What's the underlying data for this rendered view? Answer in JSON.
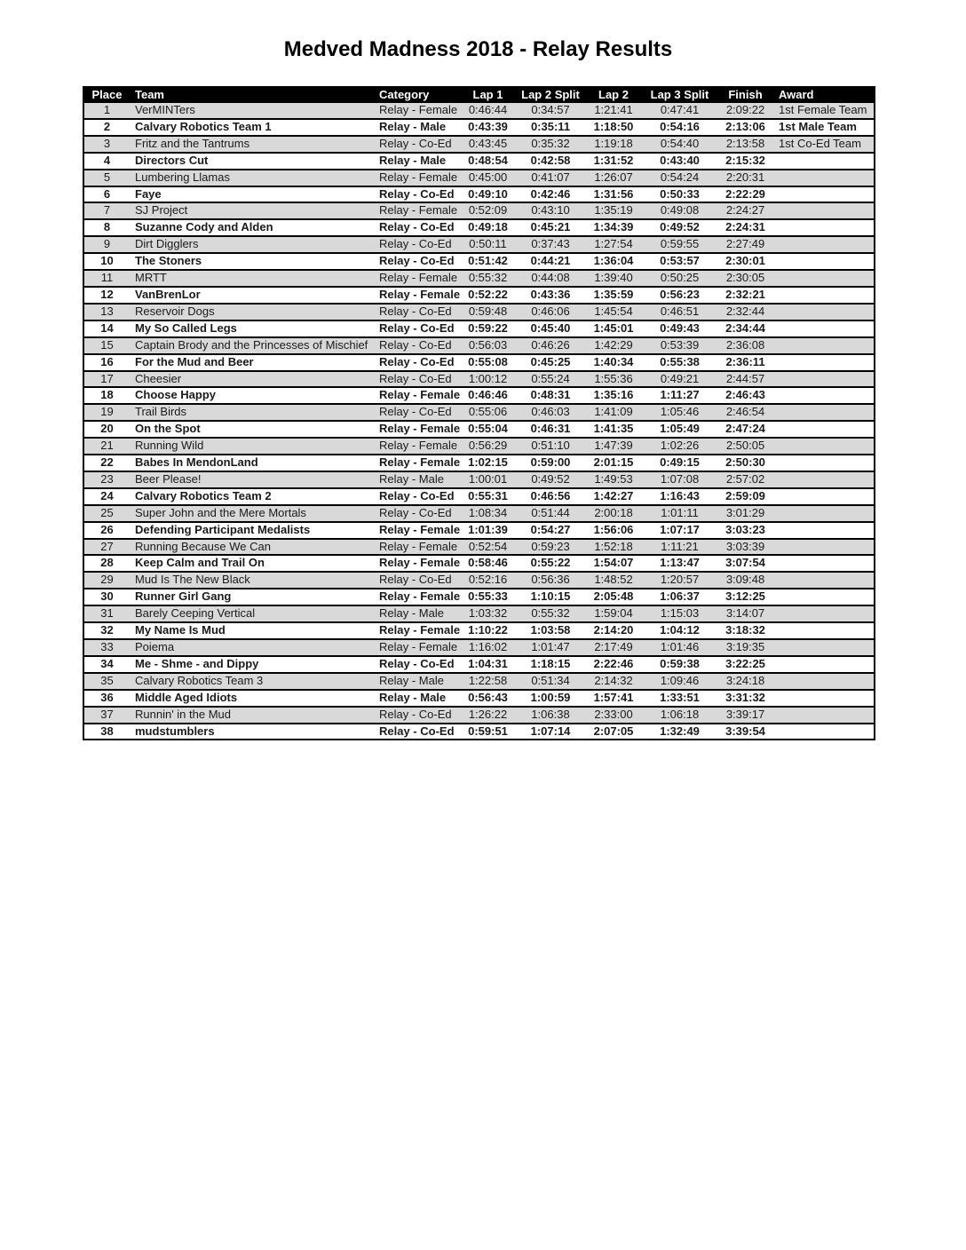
{
  "title": "Medved Madness 2018 - Relay Results",
  "colors": {
    "header_bg": "#000000",
    "header_text": "#ffffff",
    "stripe_bg": "#d9d9d9",
    "row_bg": "#ffffff",
    "border": "#000000"
  },
  "table": {
    "headers": [
      "Place",
      "Team",
      "Category",
      "Lap 1",
      "Lap 2 Split",
      "Lap 2",
      "Lap 3 Split",
      "Finish",
      "Award"
    ],
    "rows": [
      {
        "place": "1",
        "team": "VerMINTers",
        "category": "Relay - Female",
        "lap1": "0:46:44",
        "lap2_split": "0:34:57",
        "lap2": "1:21:41",
        "lap3_split": "0:47:41",
        "finish": "2:09:22",
        "award": "1st Female Team"
      },
      {
        "place": "2",
        "team": "Calvary Robotics Team 1",
        "category": "Relay - Male",
        "lap1": "0:43:39",
        "lap2_split": "0:35:11",
        "lap2": "1:18:50",
        "lap3_split": "0:54:16",
        "finish": "2:13:06",
        "award": "1st Male Team"
      },
      {
        "place": "3",
        "team": "Fritz and the Tantrums",
        "category": "Relay - Co-Ed",
        "lap1": "0:43:45",
        "lap2_split": "0:35:32",
        "lap2": "1:19:18",
        "lap3_split": "0:54:40",
        "finish": "2:13:58",
        "award": "1st Co-Ed Team"
      },
      {
        "place": "4",
        "team": "Directors Cut",
        "category": "Relay - Male",
        "lap1": "0:48:54",
        "lap2_split": "0:42:58",
        "lap2": "1:31:52",
        "lap3_split": "0:43:40",
        "finish": "2:15:32",
        "award": ""
      },
      {
        "place": "5",
        "team": "Lumbering Llamas",
        "category": "Relay - Female",
        "lap1": "0:45:00",
        "lap2_split": "0:41:07",
        "lap2": "1:26:07",
        "lap3_split": "0:54:24",
        "finish": "2:20:31",
        "award": ""
      },
      {
        "place": "6",
        "team": "Faye",
        "category": "Relay - Co-Ed",
        "lap1": "0:49:10",
        "lap2_split": "0:42:46",
        "lap2": "1:31:56",
        "lap3_split": "0:50:33",
        "finish": "2:22:29",
        "award": ""
      },
      {
        "place": "7",
        "team": "SJ Project",
        "category": "Relay - Female",
        "lap1": "0:52:09",
        "lap2_split": "0:43:10",
        "lap2": "1:35:19",
        "lap3_split": "0:49:08",
        "finish": "2:24:27",
        "award": ""
      },
      {
        "place": "8",
        "team": "Suzanne Cody and Alden",
        "category": "Relay - Co-Ed",
        "lap1": "0:49:18",
        "lap2_split": "0:45:21",
        "lap2": "1:34:39",
        "lap3_split": "0:49:52",
        "finish": "2:24:31",
        "award": ""
      },
      {
        "place": "9",
        "team": "Dirt Digglers",
        "category": "Relay - Co-Ed",
        "lap1": "0:50:11",
        "lap2_split": "0:37:43",
        "lap2": "1:27:54",
        "lap3_split": "0:59:55",
        "finish": "2:27:49",
        "award": ""
      },
      {
        "place": "10",
        "team": "The Stoners",
        "category": "Relay - Co-Ed",
        "lap1": "0:51:42",
        "lap2_split": "0:44:21",
        "lap2": "1:36:04",
        "lap3_split": "0:53:57",
        "finish": "2:30:01",
        "award": ""
      },
      {
        "place": "11",
        "team": "MRTT",
        "category": "Relay - Female",
        "lap1": "0:55:32",
        "lap2_split": "0:44:08",
        "lap2": "1:39:40",
        "lap3_split": "0:50:25",
        "finish": "2:30:05",
        "award": ""
      },
      {
        "place": "12",
        "team": "VanBrenLor",
        "category": "Relay - Female",
        "lap1": "0:52:22",
        "lap2_split": "0:43:36",
        "lap2": "1:35:59",
        "lap3_split": "0:56:23",
        "finish": "2:32:21",
        "award": ""
      },
      {
        "place": "13",
        "team": "Reservoir Dogs",
        "category": "Relay - Co-Ed",
        "lap1": "0:59:48",
        "lap2_split": "0:46:06",
        "lap2": "1:45:54",
        "lap3_split": "0:46:51",
        "finish": "2:32:44",
        "award": ""
      },
      {
        "place": "14",
        "team": "My So Called Legs",
        "category": "Relay - Co-Ed",
        "lap1": "0:59:22",
        "lap2_split": "0:45:40",
        "lap2": "1:45:01",
        "lap3_split": "0:49:43",
        "finish": "2:34:44",
        "award": ""
      },
      {
        "place": "15",
        "team": "Captain Brody and the Princesses of Mischief",
        "category": "Relay - Co-Ed",
        "lap1": "0:56:03",
        "lap2_split": "0:46:26",
        "lap2": "1:42:29",
        "lap3_split": "0:53:39",
        "finish": "2:36:08",
        "award": ""
      },
      {
        "place": "16",
        "team": "For the Mud and Beer",
        "category": "Relay - Co-Ed",
        "lap1": "0:55:08",
        "lap2_split": "0:45:25",
        "lap2": "1:40:34",
        "lap3_split": "0:55:38",
        "finish": "2:36:11",
        "award": ""
      },
      {
        "place": "17",
        "team": "Cheesier",
        "category": "Relay - Co-Ed",
        "lap1": "1:00:12",
        "lap2_split": "0:55:24",
        "lap2": "1:55:36",
        "lap3_split": "0:49:21",
        "finish": "2:44:57",
        "award": ""
      },
      {
        "place": "18",
        "team": "Choose Happy",
        "category": "Relay - Female",
        "lap1": "0:46:46",
        "lap2_split": "0:48:31",
        "lap2": "1:35:16",
        "lap3_split": "1:11:27",
        "finish": "2:46:43",
        "award": ""
      },
      {
        "place": "19",
        "team": "Trail Birds",
        "category": "Relay - Co-Ed",
        "lap1": "0:55:06",
        "lap2_split": "0:46:03",
        "lap2": "1:41:09",
        "lap3_split": "1:05:46",
        "finish": "2:46:54",
        "award": ""
      },
      {
        "place": "20",
        "team": "On the Spot",
        "category": "Relay - Female",
        "lap1": "0:55:04",
        "lap2_split": "0:46:31",
        "lap2": "1:41:35",
        "lap3_split": "1:05:49",
        "finish": "2:47:24",
        "award": ""
      },
      {
        "place": "21",
        "team": "Running Wild",
        "category": "Relay - Female",
        "lap1": "0:56:29",
        "lap2_split": "0:51:10",
        "lap2": "1:47:39",
        "lap3_split": "1:02:26",
        "finish": "2:50:05",
        "award": ""
      },
      {
        "place": "22",
        "team": "Babes In MendonLand",
        "category": "Relay - Female",
        "lap1": "1:02:15",
        "lap2_split": "0:59:00",
        "lap2": "2:01:15",
        "lap3_split": "0:49:15",
        "finish": "2:50:30",
        "award": ""
      },
      {
        "place": "23",
        "team": "Beer Please!",
        "category": "Relay - Male",
        "lap1": "1:00:01",
        "lap2_split": "0:49:52",
        "lap2": "1:49:53",
        "lap3_split": "1:07:08",
        "finish": "2:57:02",
        "award": ""
      },
      {
        "place": "24",
        "team": "Calvary Robotics Team 2",
        "category": "Relay - Co-Ed",
        "lap1": "0:55:31",
        "lap2_split": "0:46:56",
        "lap2": "1:42:27",
        "lap3_split": "1:16:43",
        "finish": "2:59:09",
        "award": ""
      },
      {
        "place": "25",
        "team": "Super John and the Mere Mortals",
        "category": "Relay - Co-Ed",
        "lap1": "1:08:34",
        "lap2_split": "0:51:44",
        "lap2": "2:00:18",
        "lap3_split": "1:01:11",
        "finish": "3:01:29",
        "award": ""
      },
      {
        "place": "26",
        "team": "Defending Participant Medalists",
        "category": "Relay - Female",
        "lap1": "1:01:39",
        "lap2_split": "0:54:27",
        "lap2": "1:56:06",
        "lap3_split": "1:07:17",
        "finish": "3:03:23",
        "award": ""
      },
      {
        "place": "27",
        "team": "Running Because We Can",
        "category": "Relay - Female",
        "lap1": "0:52:54",
        "lap2_split": "0:59:23",
        "lap2": "1:52:18",
        "lap3_split": "1:11:21",
        "finish": "3:03:39",
        "award": ""
      },
      {
        "place": "28",
        "team": "Keep Calm and Trail On",
        "category": "Relay - Female",
        "lap1": "0:58:46",
        "lap2_split": "0:55:22",
        "lap2": "1:54:07",
        "lap3_split": "1:13:47",
        "finish": "3:07:54",
        "award": ""
      },
      {
        "place": "29",
        "team": "Mud Is The New Black",
        "category": "Relay - Co-Ed",
        "lap1": "0:52:16",
        "lap2_split": "0:56:36",
        "lap2": "1:48:52",
        "lap3_split": "1:20:57",
        "finish": "3:09:48",
        "award": ""
      },
      {
        "place": "30",
        "team": "Runner Girl Gang",
        "category": "Relay - Female",
        "lap1": "0:55:33",
        "lap2_split": "1:10:15",
        "lap2": "2:05:48",
        "lap3_split": "1:06:37",
        "finish": "3:12:25",
        "award": ""
      },
      {
        "place": "31",
        "team": "Barely Ceeping Vertical",
        "category": "Relay - Male",
        "lap1": "1:03:32",
        "lap2_split": "0:55:32",
        "lap2": "1:59:04",
        "lap3_split": "1:15:03",
        "finish": "3:14:07",
        "award": ""
      },
      {
        "place": "32",
        "team": "My Name Is Mud",
        "category": "Relay - Female",
        "lap1": "1:10:22",
        "lap2_split": "1:03:58",
        "lap2": "2:14:20",
        "lap3_split": "1:04:12",
        "finish": "3:18:32",
        "award": ""
      },
      {
        "place": "33",
        "team": "Poiema",
        "category": "Relay - Female",
        "lap1": "1:16:02",
        "lap2_split": "1:01:47",
        "lap2": "2:17:49",
        "lap3_split": "1:01:46",
        "finish": "3:19:35",
        "award": ""
      },
      {
        "place": "34",
        "team": "Me - Shme - and Dippy",
        "category": "Relay - Co-Ed",
        "lap1": "1:04:31",
        "lap2_split": "1:18:15",
        "lap2": "2:22:46",
        "lap3_split": "0:59:38",
        "finish": "3:22:25",
        "award": ""
      },
      {
        "place": "35",
        "team": "Calvary Robotics Team 3",
        "category": "Relay - Male",
        "lap1": "1:22:58",
        "lap2_split": "0:51:34",
        "lap2": "2:14:32",
        "lap3_split": "1:09:46",
        "finish": "3:24:18",
        "award": ""
      },
      {
        "place": "36",
        "team": "Middle Aged Idiots",
        "category": "Relay - Male",
        "lap1": "0:56:43",
        "lap2_split": "1:00:59",
        "lap2": "1:57:41",
        "lap3_split": "1:33:51",
        "finish": "3:31:32",
        "award": ""
      },
      {
        "place": "37",
        "team": "Runnin' in the Mud",
        "category": "Relay - Co-Ed",
        "lap1": "1:26:22",
        "lap2_split": "1:06:38",
        "lap2": "2:33:00",
        "lap3_split": "1:06:18",
        "finish": "3:39:17",
        "award": ""
      },
      {
        "place": "38",
        "team": "mudstumblers",
        "category": "Relay - Co-Ed",
        "lap1": "0:59:51",
        "lap2_split": "1:07:14",
        "lap2": "2:07:05",
        "lap3_split": "1:32:49",
        "finish": "3:39:54",
        "award": ""
      }
    ]
  }
}
